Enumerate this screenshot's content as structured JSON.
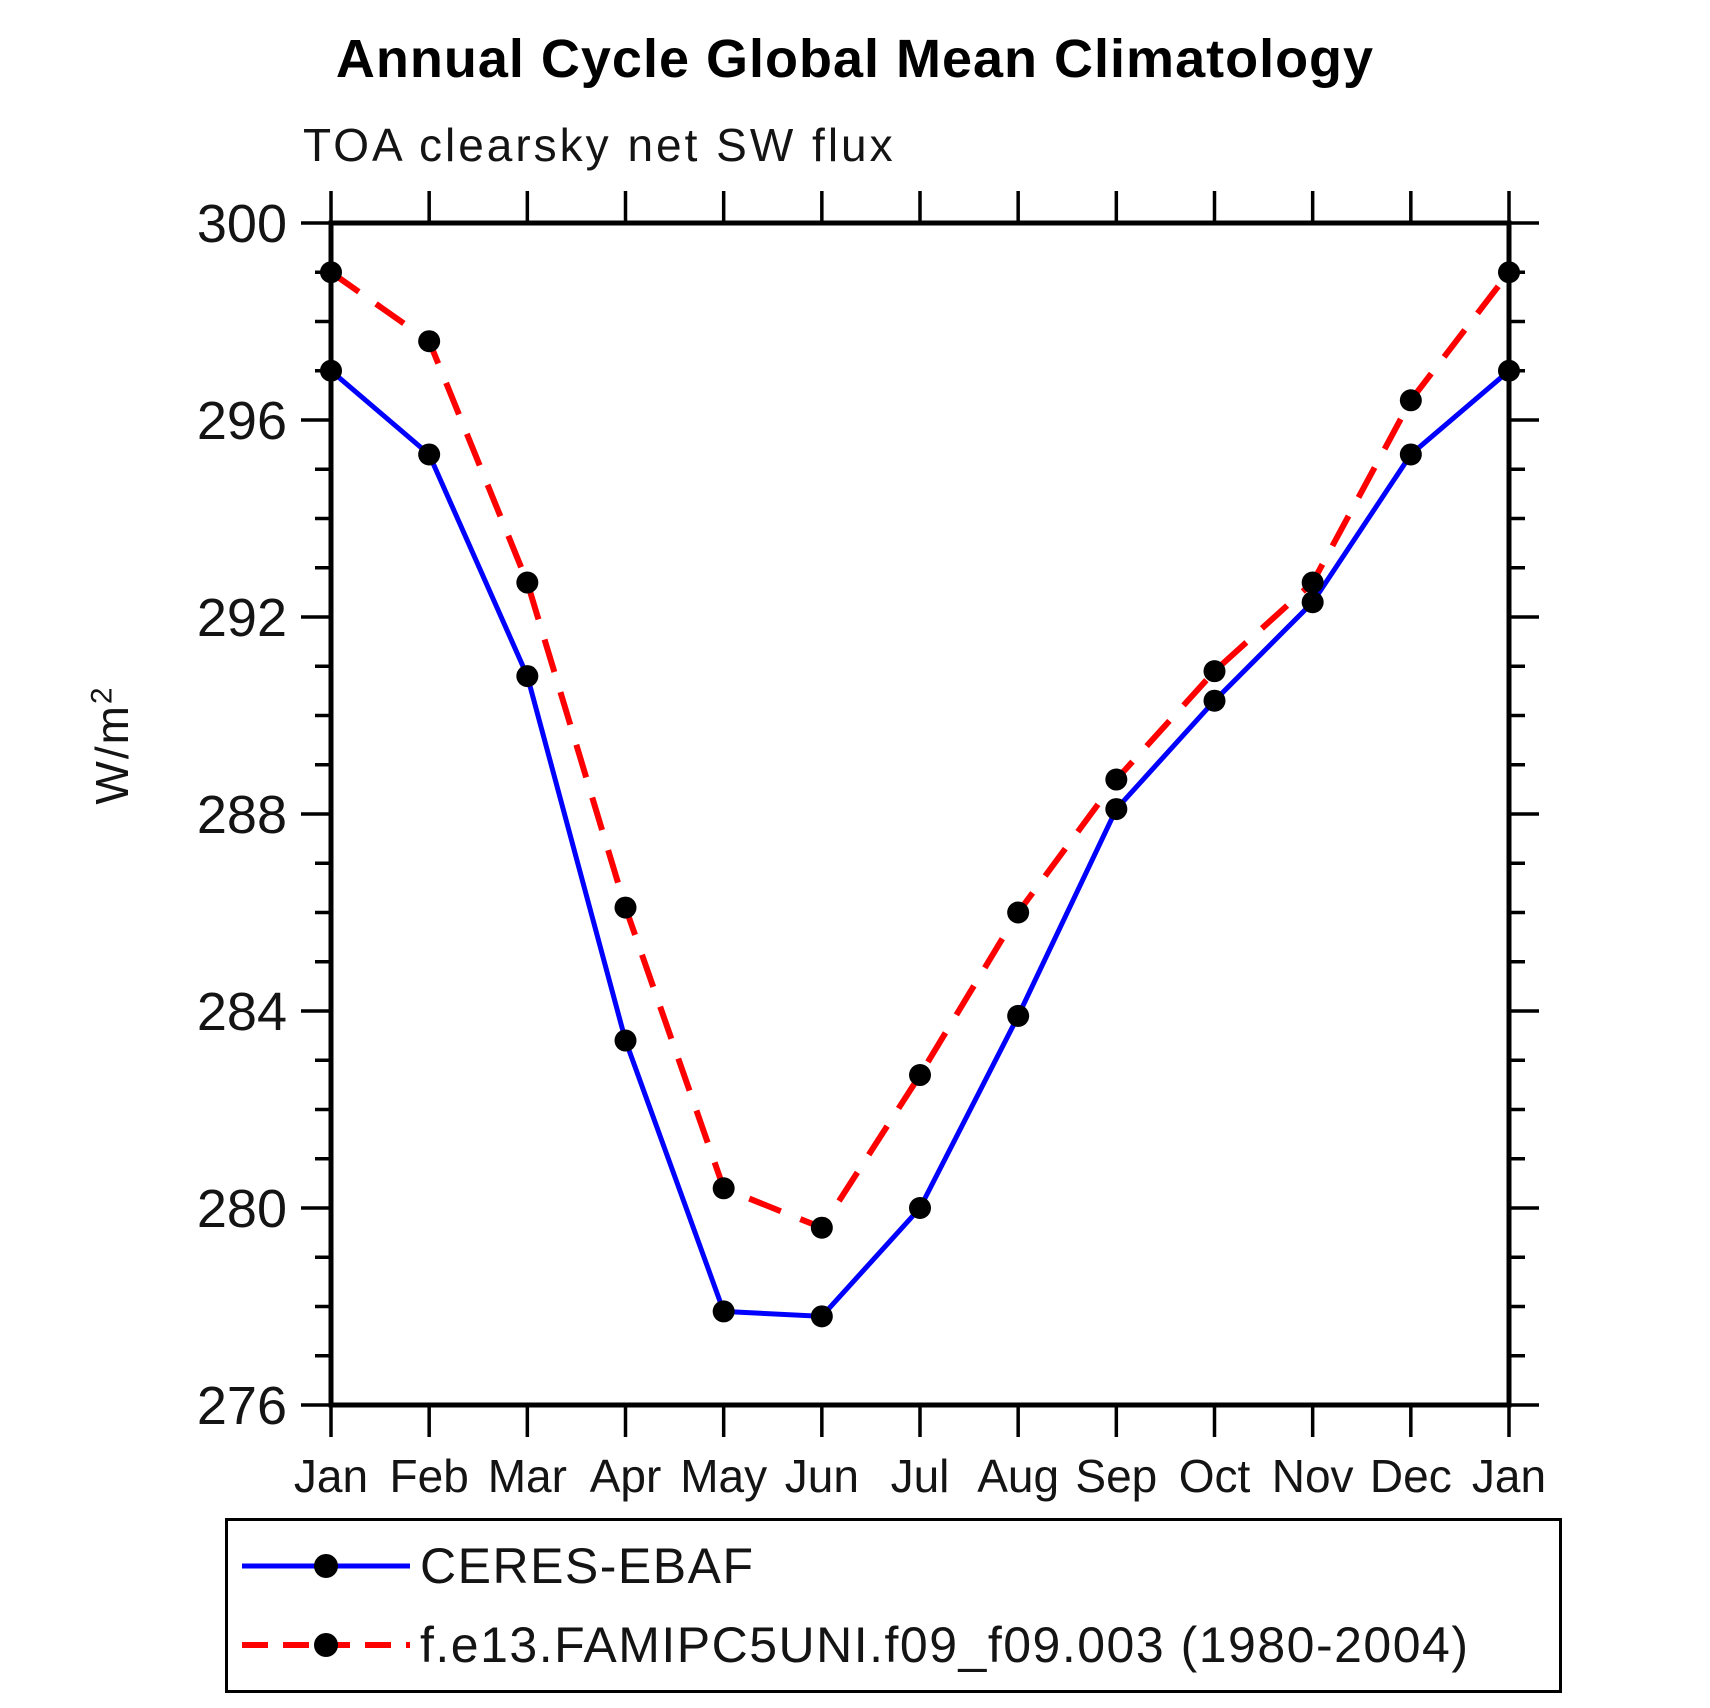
{
  "chart": {
    "title": "Annual Cycle Global Mean Climatology",
    "subtitle": "TOA clearsky net SW flux",
    "ylabel_base": "W/m",
    "ylabel_exponent": "2"
  },
  "legend": {
    "entries": [
      {
        "label": "CERES-EBAF",
        "color": "#0000ff",
        "style": "solid"
      },
      {
        "label": "f.e13.FAMIPC5UNI.f09_f09.003 (1980-2004)",
        "color": "#ff0000",
        "style": "dashed"
      }
    ]
  },
  "chart_data": {
    "type": "line",
    "title": "Annual Cycle Global Mean Climatology",
    "subtitle": "TOA clearsky net SW flux",
    "ylabel": "W/m2",
    "xlabel": "",
    "categories": [
      "Jan",
      "Feb",
      "Mar",
      "Apr",
      "May",
      "Jun",
      "Jul",
      "Aug",
      "Sep",
      "Oct",
      "Nov",
      "Dec",
      "Jan"
    ],
    "series": [
      {
        "name": "CERES-EBAF",
        "color": "#0000ff",
        "style": "solid",
        "values": [
          297.0,
          295.3,
          290.8,
          283.4,
          277.9,
          277.8,
          280.0,
          283.9,
          288.1,
          290.3,
          292.3,
          295.3,
          297.0
        ]
      },
      {
        "name": "f.e13.FAMIPC5UNI.f09_f09.003 (1980-2004)",
        "color": "#ff0000",
        "style": "dashed",
        "values": [
          299.0,
          297.6,
          292.7,
          286.1,
          280.4,
          279.6,
          282.7,
          286.0,
          288.7,
          290.9,
          292.7,
          296.4,
          299.0
        ]
      }
    ],
    "marker": {
      "shape": "circle",
      "color": "#000000"
    },
    "ylim": [
      276,
      300
    ],
    "ytick_major_step": 4,
    "ytick_minor_step": 1,
    "ytick_labels": [
      "300",
      "296",
      "292",
      "288",
      "284",
      "280",
      "276"
    ],
    "grid": false,
    "legend_position": "bottom",
    "axis_color": "#000000"
  }
}
